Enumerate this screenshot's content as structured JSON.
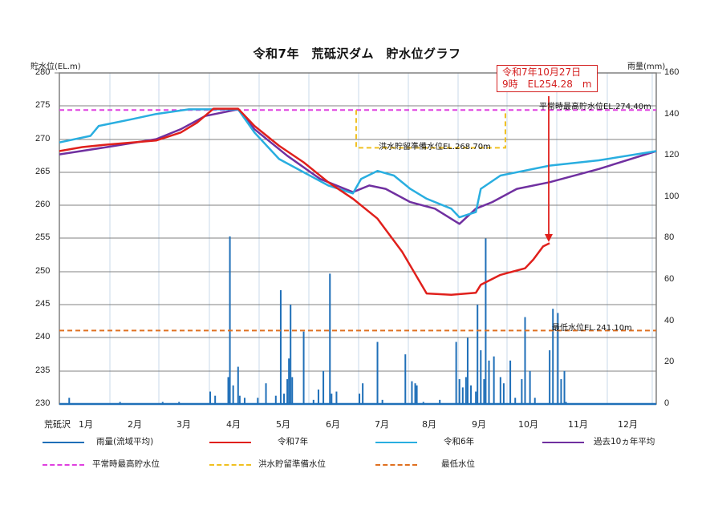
{
  "title": "令和7年　荒砥沢ダム　貯水位グラフ",
  "left_axis": {
    "title": "貯水位(EL.m)",
    "ticks": [
      "280",
      "275",
      "270",
      "265",
      "260",
      "255",
      "250",
      "245",
      "240",
      "235",
      "230"
    ]
  },
  "right_axis": {
    "title": "雨量(mm)",
    "ticks": [
      "160",
      "140",
      "120",
      "100",
      "80",
      "60",
      "40",
      "20",
      "0"
    ]
  },
  "x_axis": {
    "station": "荒砥沢",
    "months": [
      "1月",
      "2月",
      "3月",
      "4月",
      "5月",
      "6月",
      "7月",
      "8月",
      "9月",
      "10月",
      "11月",
      "12月"
    ]
  },
  "annotation": {
    "line1": "令和7年10月27日",
    "line2": "9時　EL254.28　m"
  },
  "reference_labels": {
    "normal_max": "平常時最高貯水位EL.274.40m",
    "flood": "洪水貯留準備水位EL.268.70m",
    "minimum": "最低水位EL.241.10m"
  },
  "legend": [
    {
      "label": "雨量(流域平均)",
      "color": "#1f6fb8",
      "style": "solid"
    },
    {
      "label": "令和7年",
      "color": "#e0201c",
      "style": "solid"
    },
    {
      "label": "令和6年",
      "color": "#29aee0",
      "style": "solid"
    },
    {
      "label": "過去10ヵ年平均",
      "color": "#7030a0",
      "style": "solid"
    },
    {
      "label": "平常時最高貯水位",
      "color": "#e040e0",
      "style": "dashed"
    },
    {
      "label": "洪水貯留準備水位",
      "color": "#f0c020",
      "style": "dashed"
    },
    {
      "label": "最低水位",
      "color": "#e07020",
      "style": "dashed"
    }
  ],
  "chart_data": {
    "type": "line",
    "title": "令和7年　荒砥沢ダム　貯水位グラフ",
    "xlabel": "",
    "ylabel": "貯水位(EL.m)",
    "y2label": "雨量(mm)",
    "ylim": [
      230,
      280
    ],
    "y2lim": [
      0,
      160
    ],
    "categories": [
      "1月",
      "2月",
      "3月",
      "4月",
      "5月",
      "6月",
      "7月",
      "8月",
      "9月",
      "10月",
      "11月",
      "12月"
    ],
    "grid": true,
    "legend_position": "bottom",
    "series": [
      {
        "name": "令和7年",
        "axis": "left",
        "color": "#e0201c",
        "points": [
          [
            1,
            268.2
          ],
          [
            15,
            268.8
          ],
          [
            31,
            269.2
          ],
          [
            60,
            269.8
          ],
          [
            75,
            271.0
          ],
          [
            85,
            272.5
          ],
          [
            95,
            274.6
          ],
          [
            110,
            274.6
          ],
          [
            120,
            272.0
          ],
          [
            135,
            269.0
          ],
          [
            150,
            266.5
          ],
          [
            165,
            263.5
          ],
          [
            180,
            261.0
          ],
          [
            195,
            258.0
          ],
          [
            210,
            253.0
          ],
          [
            225,
            246.7
          ],
          [
            240,
            246.5
          ],
          [
            255,
            246.8
          ],
          [
            258,
            248.0
          ],
          [
            270,
            249.5
          ],
          [
            285,
            250.5
          ],
          [
            290,
            251.8
          ],
          [
            296,
            253.8
          ],
          [
            300,
            254.28
          ]
        ]
      },
      {
        "name": "令和6年",
        "axis": "left",
        "color": "#29aee0",
        "points": [
          [
            1,
            269.5
          ],
          [
            20,
            270.5
          ],
          [
            25,
            272.0
          ],
          [
            45,
            273.0
          ],
          [
            60,
            273.8
          ],
          [
            80,
            274.5
          ],
          [
            110,
            274.5
          ],
          [
            120,
            271.0
          ],
          [
            135,
            267.0
          ],
          [
            150,
            265.0
          ],
          [
            165,
            263.0
          ],
          [
            180,
            261.8
          ],
          [
            185,
            264.0
          ],
          [
            195,
            265.2
          ],
          [
            205,
            264.5
          ],
          [
            215,
            262.5
          ],
          [
            225,
            261.0
          ],
          [
            240,
            259.5
          ],
          [
            245,
            258.2
          ],
          [
            255,
            259.0
          ],
          [
            258,
            262.5
          ],
          [
            270,
            264.5
          ],
          [
            300,
            266.0
          ],
          [
            330,
            266.8
          ],
          [
            365,
            268.2
          ]
        ]
      },
      {
        "name": "過去10ヵ年平均",
        "axis": "left",
        "color": "#7030a0",
        "points": [
          [
            1,
            267.7
          ],
          [
            30,
            268.8
          ],
          [
            60,
            270.0
          ],
          [
            75,
            271.5
          ],
          [
            90,
            273.5
          ],
          [
            110,
            274.5
          ],
          [
            120,
            271.5
          ],
          [
            140,
            267.5
          ],
          [
            160,
            264.0
          ],
          [
            180,
            262.0
          ],
          [
            190,
            263.0
          ],
          [
            200,
            262.5
          ],
          [
            215,
            260.5
          ],
          [
            230,
            259.5
          ],
          [
            245,
            257.2
          ],
          [
            255,
            259.5
          ],
          [
            265,
            260.5
          ],
          [
            280,
            262.5
          ],
          [
            300,
            263.5
          ],
          [
            330,
            265.5
          ],
          [
            365,
            268.2
          ]
        ]
      },
      {
        "name": "平常時最高貯水位",
        "axis": "left",
        "color": "#e040e0",
        "constant": 274.4
      },
      {
        "name": "洪水貯留準備水位",
        "axis": "left",
        "color": "#f0c020",
        "constant": 268.7,
        "x_range": [
          182,
          273
        ]
      },
      {
        "name": "最低水位",
        "axis": "left",
        "color": "#e07020",
        "constant": 241.1
      },
      {
        "name": "雨量(流域平均)",
        "type": "bar",
        "axis": "right",
        "color": "#1f6fb8",
        "points": [
          [
            7,
            3
          ],
          [
            38,
            1
          ],
          [
            64,
            1
          ],
          [
            74,
            1
          ],
          [
            93,
            6
          ],
          [
            96,
            4
          ],
          [
            104,
            13
          ],
          [
            105,
            81
          ],
          [
            107,
            9
          ],
          [
            110,
            18
          ],
          [
            111,
            4
          ],
          [
            114,
            3
          ],
          [
            122,
            3
          ],
          [
            127,
            10
          ],
          [
            133,
            4
          ],
          [
            136,
            55
          ],
          [
            138,
            5
          ],
          [
            140,
            12
          ],
          [
            141,
            22
          ],
          [
            142,
            48
          ],
          [
            143,
            13
          ],
          [
            150,
            35
          ],
          [
            156,
            2
          ],
          [
            159,
            7
          ],
          [
            162,
            16
          ],
          [
            166,
            63
          ],
          [
            167,
            5
          ],
          [
            170,
            6
          ],
          [
            184,
            5
          ],
          [
            186,
            10
          ],
          [
            195,
            30
          ],
          [
            198,
            2
          ],
          [
            212,
            24
          ],
          [
            216,
            11
          ],
          [
            218,
            10
          ],
          [
            219,
            9
          ],
          [
            223,
            1
          ],
          [
            233,
            2
          ],
          [
            243,
            30
          ],
          [
            245,
            12
          ],
          [
            247,
            8
          ],
          [
            249,
            13
          ],
          [
            250,
            32
          ],
          [
            252,
            9
          ],
          [
            255,
            6
          ],
          [
            256,
            48
          ],
          [
            258,
            26
          ],
          [
            260,
            12
          ],
          [
            261,
            80
          ],
          [
            263,
            21
          ],
          [
            266,
            23
          ],
          [
            270,
            13
          ],
          [
            272,
            10
          ],
          [
            276,
            21
          ],
          [
            279,
            3
          ],
          [
            283,
            12
          ],
          [
            285,
            42
          ],
          [
            288,
            16
          ],
          [
            291,
            3
          ],
          [
            300,
            26
          ],
          [
            302,
            46
          ],
          [
            305,
            44
          ],
          [
            307,
            12
          ],
          [
            309,
            16
          ],
          [
            310,
            1
          ]
        ]
      }
    ],
    "annotation": {
      "text": "令和7年10月27日 9時 EL254.28 m",
      "x": 300,
      "y": 254.28
    }
  }
}
